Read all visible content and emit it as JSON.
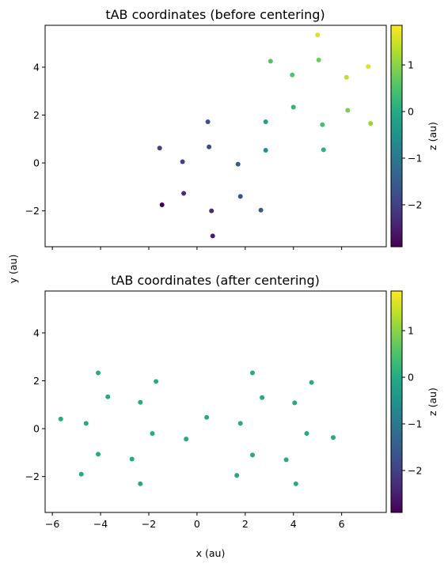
{
  "figure": {
    "xlabel": "x (au)",
    "ylabel": "y (au)"
  },
  "colorbar": {
    "label": "z (au)",
    "ticks": [
      1,
      0,
      -1,
      -2
    ],
    "tick_labels": [
      "1",
      "0",
      "−1",
      "−2"
    ],
    "range": [
      -2.9,
      1.85
    ],
    "colormap": "viridis"
  },
  "chart_data": [
    {
      "type": "scatter",
      "title": "tAB coordinates (before centering)",
      "xlabel": "",
      "ylabel": "",
      "xlim": [
        -6.3,
        7.85
      ],
      "ylim": [
        -3.5,
        5.75
      ],
      "xticks": [
        -6,
        -4,
        -2,
        0,
        2,
        4,
        6
      ],
      "xtick_labels": [
        "",
        "",
        "",
        "",
        "",
        "",
        ""
      ],
      "yticks": [
        -2,
        0,
        2,
        4
      ],
      "ytick_labels": [
        "−2",
        "0",
        "2",
        "4"
      ],
      "points": [
        {
          "x": -1.55,
          "y": 0.62,
          "z": -2.0
        },
        {
          "x": -0.6,
          "y": 0.05,
          "z": -2.0
        },
        {
          "x": 0.45,
          "y": 1.72,
          "z": -1.7
        },
        {
          "x": 0.5,
          "y": 0.67,
          "z": -1.85
        },
        {
          "x": -1.45,
          "y": -1.75,
          "z": -2.9
        },
        {
          "x": -0.55,
          "y": -1.27,
          "z": -2.3
        },
        {
          "x": 0.6,
          "y": -2.0,
          "z": -2.3
        },
        {
          "x": 0.65,
          "y": -3.05,
          "z": -2.55
        },
        {
          "x": 1.7,
          "y": -0.05,
          "z": -1.5
        },
        {
          "x": 1.8,
          "y": -1.4,
          "z": -1.7
        },
        {
          "x": 2.65,
          "y": -1.97,
          "z": -1.6
        },
        {
          "x": 2.85,
          "y": 1.72,
          "z": -0.2
        },
        {
          "x": 2.85,
          "y": 0.53,
          "z": -0.5
        },
        {
          "x": 3.05,
          "y": 4.25,
          "z": 0.5
        },
        {
          "x": 3.95,
          "y": 3.68,
          "z": 0.55
        },
        {
          "x": 4.0,
          "y": 2.33,
          "z": 0.2
        },
        {
          "x": 5.0,
          "y": 5.35,
          "z": 1.55
        },
        {
          "x": 5.05,
          "y": 4.3,
          "z": 0.75
        },
        {
          "x": 5.2,
          "y": 1.6,
          "z": 0.4
        },
        {
          "x": 5.25,
          "y": 0.55,
          "z": 0.1
        },
        {
          "x": 6.2,
          "y": 3.58,
          "z": 1.4
        },
        {
          "x": 6.25,
          "y": 2.2,
          "z": 0.85
        },
        {
          "x": 7.1,
          "y": 4.03,
          "z": 1.6
        },
        {
          "x": 7.2,
          "y": 1.65,
          "z": 1.1
        }
      ]
    },
    {
      "type": "scatter",
      "title": "tAB coordinates (after centering)",
      "xlabel": "",
      "ylabel": "",
      "xlim": [
        -6.3,
        7.85
      ],
      "ylim": [
        -3.5,
        5.75
      ],
      "xticks": [
        -6,
        -4,
        -2,
        0,
        2,
        4,
        6
      ],
      "xtick_labels": [
        "−6",
        "−4",
        "−2",
        "0",
        "2",
        "4",
        "6"
      ],
      "yticks": [
        -2,
        0,
        2,
        4
      ],
      "ytick_labels": [
        "−2",
        "0",
        "2",
        "4"
      ],
      "points": [
        {
          "x": -5.65,
          "y": 0.4,
          "z": 0.0
        },
        {
          "x": -4.6,
          "y": 0.22,
          "z": 0.0
        },
        {
          "x": -4.1,
          "y": 2.33,
          "z": 0.0
        },
        {
          "x": -3.7,
          "y": 1.33,
          "z": 0.0
        },
        {
          "x": -4.1,
          "y": -1.07,
          "z": 0.0
        },
        {
          "x": -4.8,
          "y": -1.9,
          "z": 0.0
        },
        {
          "x": -2.35,
          "y": 1.1,
          "z": 0.0
        },
        {
          "x": -1.7,
          "y": 1.97,
          "z": 0.0
        },
        {
          "x": -1.85,
          "y": -0.2,
          "z": 0.0
        },
        {
          "x": -2.7,
          "y": -1.27,
          "z": 0.0
        },
        {
          "x": -2.35,
          "y": -2.3,
          "z": 0.0
        },
        {
          "x": -0.45,
          "y": -0.43,
          "z": 0.0
        },
        {
          "x": 0.4,
          "y": 0.47,
          "z": 0.0
        },
        {
          "x": 1.8,
          "y": 0.22,
          "z": 0.0
        },
        {
          "x": 1.65,
          "y": -1.95,
          "z": 0.0
        },
        {
          "x": 2.3,
          "y": -1.1,
          "z": 0.0
        },
        {
          "x": 2.3,
          "y": 2.33,
          "z": 0.0
        },
        {
          "x": 2.7,
          "y": 1.3,
          "z": 0.0
        },
        {
          "x": 3.7,
          "y": -1.3,
          "z": 0.0
        },
        {
          "x": 4.05,
          "y": 1.08,
          "z": 0.0
        },
        {
          "x": 4.1,
          "y": -2.3,
          "z": 0.0
        },
        {
          "x": 4.55,
          "y": -0.2,
          "z": 0.0
        },
        {
          "x": 4.75,
          "y": 1.93,
          "z": 0.0
        },
        {
          "x": 5.65,
          "y": -0.37,
          "z": 0.0
        }
      ]
    }
  ]
}
